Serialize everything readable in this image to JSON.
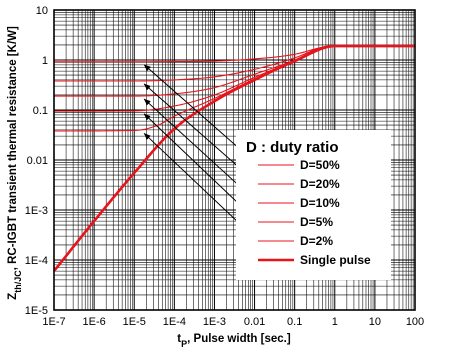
{
  "chart_data": {
    "type": "line",
    "title": "",
    "xlabel": {
      "main": "t",
      "sub": "P",
      "rest": ", Pulse width [sec.]"
    },
    "ylabel": {
      "main": "Z",
      "sub": "th/JC",
      "rest": ", RC-IGBT transient thermal resistance [K/W]"
    },
    "xscale": "log",
    "yscale": "log",
    "xlim": [
      1e-07,
      100
    ],
    "ylim": [
      1e-05,
      10
    ],
    "x_ticks": [
      {
        "v": 1e-07,
        "label": "1E-7"
      },
      {
        "v": 1e-06,
        "label": "1E-6"
      },
      {
        "v": 1e-05,
        "label": "1E-5"
      },
      {
        "v": 0.0001,
        "label": "1E-4"
      },
      {
        "v": 0.001,
        "label": "1E-3"
      },
      {
        "v": 0.01,
        "label": "0.01"
      },
      {
        "v": 0.1,
        "label": "0.1"
      },
      {
        "v": 1,
        "label": "1"
      },
      {
        "v": 10,
        "label": "10"
      },
      {
        "v": 100,
        "label": "100"
      }
    ],
    "y_ticks": [
      {
        "v": 1e-05,
        "label": "1E-5"
      },
      {
        "v": 0.0001,
        "label": "1E-4"
      },
      {
        "v": 0.001,
        "label": "1E-3"
      },
      {
        "v": 0.01,
        "label": "0.01"
      },
      {
        "v": 0.1,
        "label": "0.1"
      },
      {
        "v": 1,
        "label": "1"
      },
      {
        "v": 10,
        "label": "10"
      }
    ],
    "grid": true,
    "legend": {
      "title": "D : duty ratio",
      "placement": "right",
      "entries": [
        "D=50%",
        "D=20%",
        "D=10%",
        "D=5%",
        "D=2%",
        "Single pulse"
      ]
    },
    "annotation": "arrows pointing from legend to curve plateaus near t_P = 1E-5",
    "series": [
      {
        "name": "D=50%",
        "duty": 0.5,
        "x": [
          1e-07,
          1e-05,
          0.0001,
          0.001,
          0.01,
          0.1,
          0.5,
          1,
          10,
          100
        ],
        "y": [
          0.92,
          0.92,
          0.93,
          0.95,
          1.05,
          1.3,
          1.8,
          1.9,
          1.9,
          1.9
        ]
      },
      {
        "name": "D=20%",
        "duty": 0.2,
        "x": [
          1e-07,
          1e-05,
          0.0001,
          0.001,
          0.01,
          0.1,
          0.5,
          1,
          10,
          100
        ],
        "y": [
          0.38,
          0.38,
          0.4,
          0.46,
          0.65,
          1.1,
          1.8,
          1.9,
          1.9,
          1.9
        ]
      },
      {
        "name": "D=10%",
        "duty": 0.1,
        "x": [
          1e-07,
          1e-05,
          0.0001,
          0.001,
          0.01,
          0.1,
          0.5,
          1,
          10,
          100
        ],
        "y": [
          0.19,
          0.19,
          0.21,
          0.28,
          0.52,
          1.0,
          1.8,
          1.9,
          1.9,
          1.9
        ]
      },
      {
        "name": "D=5%",
        "duty": 0.05,
        "x": [
          1e-07,
          1e-05,
          0.0001,
          0.001,
          0.01,
          0.1,
          0.5,
          1,
          10,
          100
        ],
        "y": [
          0.095,
          0.096,
          0.12,
          0.2,
          0.45,
          0.98,
          1.8,
          1.9,
          1.9,
          1.9
        ]
      },
      {
        "name": "D=2%",
        "duty": 0.02,
        "x": [
          1e-07,
          1e-05,
          4e-05,
          0.0001,
          0.001,
          0.01,
          0.1,
          0.5,
          1,
          10,
          100
        ],
        "y": [
          0.038,
          0.039,
          0.05,
          0.075,
          0.17,
          0.42,
          0.96,
          1.8,
          1.9,
          1.9,
          1.9
        ]
      },
      {
        "name": "Single pulse",
        "duty": 0,
        "x": [
          1e-07,
          1e-06,
          1e-05,
          0.0001,
          0.001,
          0.01,
          0.1,
          1,
          10,
          100
        ],
        "y": [
          6e-05,
          0.0006,
          0.0055,
          0.042,
          0.15,
          0.4,
          0.95,
          1.9,
          1.9,
          1.9
        ]
      }
    ]
  }
}
